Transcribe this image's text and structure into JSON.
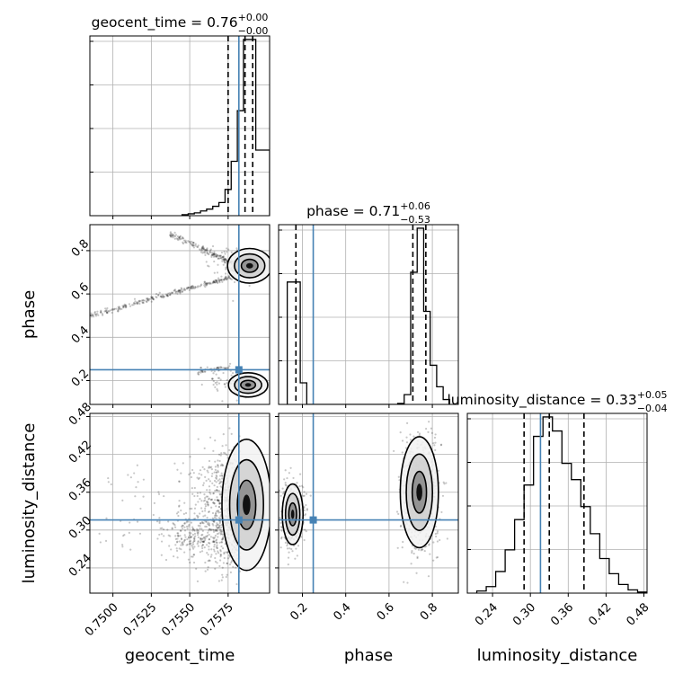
{
  "chart_data": {
    "type": "scatter",
    "subtype": "corner-plot",
    "parameters": [
      "geocent_time",
      "phase",
      "luminosity_distance"
    ],
    "truth_color": "#4682b4",
    "grid": true,
    "titles": {
      "geocent_time": {
        "label": "geocent_time = 0.76",
        "upper": "+0.00",
        "lower": "−0.00"
      },
      "phase": {
        "label": "phase = 0.71",
        "upper": "+0.06",
        "lower": "−0.53"
      },
      "luminosity_distance": {
        "label": "luminosity_distance = 0.33",
        "upper": "+0.05",
        "lower": "−0.04"
      }
    },
    "axes": {
      "geocent_time": {
        "xlabel": "geocent_time",
        "range": [
          0.7485,
          0.7602
        ],
        "ticks": [
          0.75,
          0.7525,
          0.755,
          0.7575
        ],
        "tick_labels": [
          "0.7500",
          "0.7525",
          "0.7550",
          "0.7575"
        ],
        "truth": 0.7582,
        "quantiles": [
          0.7575,
          0.7586,
          0.7591
        ],
        "hist_edges": [
          0.7545,
          0.7549,
          0.7553,
          0.7557,
          0.7561,
          0.7565,
          0.7569,
          0.7573,
          0.7577,
          0.7581,
          0.7585,
          0.7589,
          0.7593,
          0.7597,
          0.7602
        ],
        "hist_counts": [
          1,
          2,
          3,
          5,
          7,
          10,
          14,
          28,
          58,
          112,
          188,
          188,
          70,
          70
        ]
      },
      "phase": {
        "xlabel": "phase",
        "ylabel": "phase",
        "range": [
          0.09,
          0.92
        ],
        "ticks": [
          0.2,
          0.4,
          0.6,
          0.8
        ],
        "tick_labels": [
          "0.2",
          "0.4",
          "0.6",
          "0.8"
        ],
        "truth": 0.25,
        "quantiles": [
          0.17,
          0.71,
          0.77
        ],
        "hist_edges": [
          0.13,
          0.16,
          0.19,
          0.22,
          0.25,
          0.28,
          0.31,
          0.34,
          0.37,
          0.4,
          0.43,
          0.46,
          0.49,
          0.52,
          0.55,
          0.58,
          0.61,
          0.64,
          0.67,
          0.7,
          0.73,
          0.76,
          0.79,
          0.82,
          0.85,
          0.88
        ],
        "hist_counts": [
          125,
          125,
          22,
          0,
          0,
          0,
          0,
          0,
          0,
          0,
          0,
          0,
          0,
          0,
          0,
          0,
          0,
          1,
          10,
          135,
          180,
          95,
          40,
          18,
          5
        ]
      },
      "luminosity_distance": {
        "xlabel": "luminosity_distance",
        "ylabel": "luminosity_distance",
        "range": [
          0.2,
          0.485
        ],
        "ticks": [
          0.24,
          0.3,
          0.36,
          0.42,
          0.48
        ],
        "tick_labels": [
          "0.24",
          "0.30",
          "0.36",
          "0.42",
          "0.48"
        ],
        "truth": 0.316,
        "quantiles": [
          0.29,
          0.33,
          0.385
        ],
        "hist_edges": [
          0.215,
          0.23,
          0.245,
          0.26,
          0.275,
          0.29,
          0.305,
          0.32,
          0.335,
          0.35,
          0.365,
          0.38,
          0.395,
          0.41,
          0.425,
          0.44,
          0.455,
          0.47,
          0.485
        ],
        "hist_counts": [
          2,
          6,
          20,
          40,
          68,
          100,
          145,
          163,
          150,
          120,
          105,
          80,
          55,
          32,
          18,
          8,
          3,
          1
        ]
      }
    }
  }
}
